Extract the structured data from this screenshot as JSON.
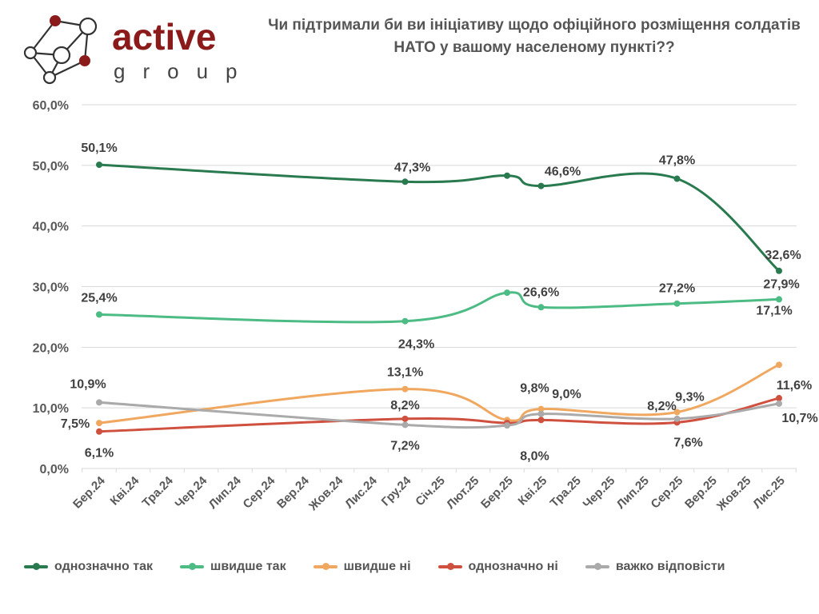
{
  "logo": {
    "word": "active",
    "subword": "group",
    "brand_color": "#8b1a1a"
  },
  "title": "Чи підтримали би ви ініціативу щодо офіційного розміщення солдатів НАТО у вашому населеному пункті??",
  "chart_data": {
    "type": "line",
    "title": "Чи підтримали би ви ініціативу щодо офіційного розміщення солдатів НАТО у вашому населеному пункті??",
    "xlabel": "",
    "ylabel": "",
    "ylim": [
      0,
      60
    ],
    "yticks": [
      "0,0%",
      "10,0%",
      "20,0%",
      "30,0%",
      "40,0%",
      "50,0%",
      "60,0%"
    ],
    "grid": true,
    "legend_position": "bottom",
    "categories": [
      "Бер.24",
      "Кві.24",
      "Тра.24",
      "Чер.24",
      "Лип.24",
      "Сер.24",
      "Вер.24",
      "Жов.24",
      "Лис.24",
      "Гру.24",
      "Січ.25",
      "Лют.25",
      "Бер.25",
      "Кві.25",
      "Тра.25",
      "Чер.25",
      "Лип.25",
      "Сер.25",
      "Вер.25",
      "Жов.25",
      "Лис.25"
    ],
    "series": [
      {
        "name": "однозначно так",
        "color": "#2a7a4f",
        "points": [
          {
            "x": 0,
            "y": 50.1,
            "label": "50,1%"
          },
          {
            "x": 9,
            "y": 47.3,
            "label": "47,3%"
          },
          {
            "x": 12,
            "y": 48.3,
            "label": ""
          },
          {
            "x": 13,
            "y": 46.6,
            "label": "46,6%"
          },
          {
            "x": 17,
            "y": 47.8,
            "label": "47,8%"
          },
          {
            "x": 20,
            "y": 32.6,
            "label": "32,6%"
          }
        ]
      },
      {
        "name": "швидше так",
        "color": "#4dbb84",
        "points": [
          {
            "x": 0,
            "y": 25.4,
            "label": "25,4%"
          },
          {
            "x": 9,
            "y": 24.3,
            "label": "24,3%"
          },
          {
            "x": 12,
            "y": 29.0,
            "label": ""
          },
          {
            "x": 13,
            "y": 26.6,
            "label": "26,6%"
          },
          {
            "x": 17,
            "y": 27.2,
            "label": "27,2%"
          },
          {
            "x": 20,
            "y": 27.9,
            "label": "27,9%"
          }
        ]
      },
      {
        "name": "швидше ні",
        "color": "#f0a860",
        "points": [
          {
            "x": 0,
            "y": 7.5,
            "label": "7,5%"
          },
          {
            "x": 9,
            "y": 13.1,
            "label": "13,1%"
          },
          {
            "x": 12,
            "y": 8.0,
            "label": ""
          },
          {
            "x": 13,
            "y": 9.8,
            "label": "9,8%"
          },
          {
            "x": 17,
            "y": 9.3,
            "label": "9,3%"
          },
          {
            "x": 20,
            "y": 17.1,
            "label": "17,1%"
          }
        ]
      },
      {
        "name": "однозначно ні",
        "color": "#d0503f",
        "points": [
          {
            "x": 0,
            "y": 6.1,
            "label": "6,1%"
          },
          {
            "x": 9,
            "y": 8.2,
            "label": "8,2%"
          },
          {
            "x": 12,
            "y": 7.5,
            "label": ""
          },
          {
            "x": 13,
            "y": 8.0,
            "label": "8,0%"
          },
          {
            "x": 17,
            "y": 7.6,
            "label": "7,6%"
          },
          {
            "x": 20,
            "y": 11.6,
            "label": "11,6%"
          }
        ]
      },
      {
        "name": "важко відповісти",
        "color": "#aaaaaa",
        "points": [
          {
            "x": 0,
            "y": 10.9,
            "label": "10,9%"
          },
          {
            "x": 9,
            "y": 7.2,
            "label": "7,2%"
          },
          {
            "x": 12,
            "y": 7.1,
            "label": ""
          },
          {
            "x": 13,
            "y": 9.0,
            "label": "9,0%"
          },
          {
            "x": 17,
            "y": 8.2,
            "label": "8,2%"
          },
          {
            "x": 20,
            "y": 10.7,
            "label": "10,7%"
          }
        ]
      }
    ]
  }
}
